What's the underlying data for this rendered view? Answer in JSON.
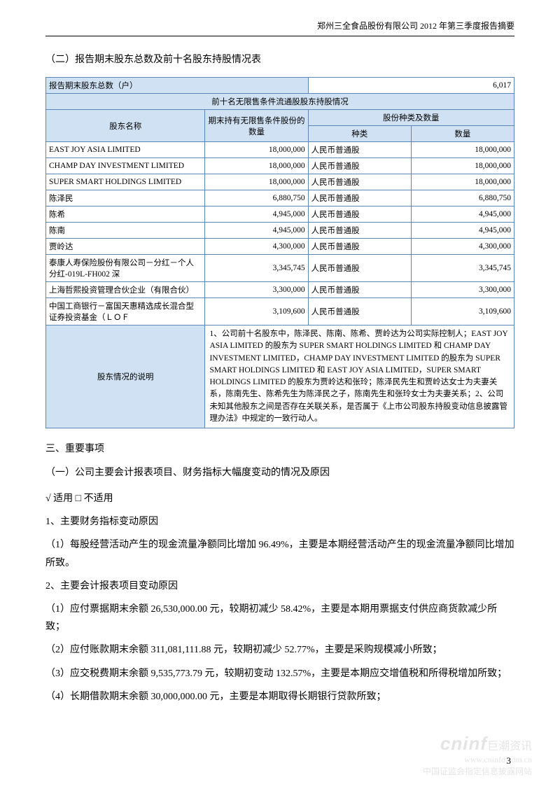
{
  "header": "郑州三全食品股份有限公司  2012 年第三季度报告摘要",
  "section2_title": "（二）报告期末股东总数及前十名股东持股情况表",
  "total_holders_label": "报告期末股东总数（户）",
  "total_holders_value": "6,017",
  "top10_header": "前十名无限售条件流通股股东持股情况",
  "col_name": "股东名称",
  "col_unlimited": "期末持有无限售条件股份的数量",
  "col_type_qty": "股份种类及数量",
  "col_type": "种类",
  "col_qty": "数量",
  "rows": [
    {
      "name": "EAST JOY ASIA LIMITED",
      "unl": "18,000,000",
      "type": "人民币普通股",
      "qty": "18,000,000"
    },
    {
      "name": "CHAMP DAY INVESTMENT LIMITED",
      "unl": "18,000,000",
      "type": "人民币普通股",
      "qty": "18,000,000"
    },
    {
      "name": "SUPER SMART HOLDINGS LIMITED",
      "unl": "18,000,000",
      "type": "人民币普通股",
      "qty": "18,000,000"
    },
    {
      "name": "陈泽民",
      "unl": "6,880,750",
      "type": "人民币普通股",
      "qty": "6,880,750"
    },
    {
      "name": "陈希",
      "unl": "4,945,000",
      "type": "人民币普通股",
      "qty": "4,945,000"
    },
    {
      "name": "陈南",
      "unl": "4,945,000",
      "type": "人民币普通股",
      "qty": "4,945,000"
    },
    {
      "name": "贾岭达",
      "unl": "4,300,000",
      "type": "人民币普通股",
      "qty": "4,300,000"
    },
    {
      "name": "泰康人寿保险股份有限公司－分红－个人分红-019L-FH002 深",
      "unl": "3,345,745",
      "type": "人民币普通股",
      "qty": "3,345,745"
    },
    {
      "name": "上海哲熙投资管理合伙企业（有限合伙）",
      "unl": "3,300,000",
      "type": "人民币普通股",
      "qty": "3,300,000"
    },
    {
      "name": "中国工商银行－富国天惠精选成长混合型证券投资基金（ＬＯＦ",
      "unl": "3,109,600",
      "type": "人民币普通股",
      "qty": "3,109,600"
    }
  ],
  "desc_label": "股东情况的说明",
  "desc_text": "1、公司前十名股东中，陈泽民、陈南、陈希、贾岭达为公司实际控制人；EAST JOY ASIA LIMITED 的股东为 SUPER SMART HOLDINGS LIMITED 和 CHAMP DAY INVESTMENT LIMITED，CHAMP DAY INVESTMENT LIMITED 的股东为 SUPER SMART HOLDINGS LIMITED 和 EAST JOY ASIA LIMITED，SUPER SMART HOLDINGS LIMITED 的股东为贾岭达和张玲；陈泽民先生和贾岭达女士为夫妻关系，陈南先生、陈希先生为陈泽民之子，陈南先生和张玲女士为夫妻关系；2、公司未知其他股东之间是否存在关联关系，是否属于《上市公司股东持股变动信息披露管理办法》中规定的一致行动人。",
  "section3": "三、重要事项",
  "section3_1": "（一）公司主要会计报表项目、财务指标大幅度变动的情况及原因",
  "applies": "√ 适用 □  不适用",
  "p1_title": "1、主要财务指标变动原因",
  "p1_1": "（1）每股经营活动产生的现金流量净额同比增加 96.49%，主要是本期经营活动产生的现金流量净额同比增加所致。",
  "p2_title": "2、主要会计报表项目变动原因",
  "p2_1": "（1）应付票据期末余额 26,530,000.00  元，较期初减少 58.42%，主要是本期用票据支付供应商货款减少所致；",
  "p2_2": "（2）应付账款期末余额 311,081,111.88  元，较期初减少 52.77%，主要是采购规模减小所致；",
  "p2_3": "（3）应交税费期末余额 9,535,773.79  元，较期初变动 132.57%，主要是本期应交增值税和所得税增加所致；",
  "p2_4": "（4）长期借款期末余额 30,000,000.00  元，主要是本期取得长期银行贷款所致；",
  "page_number": "3",
  "watermark": {
    "logo": "cninf",
    "cn": "巨潮资讯",
    "url": "www.cninfo.com.cn",
    "line2": "中国证监会指定信息披露网站"
  },
  "colors": {
    "border": "#5b86b6",
    "header_bg": "#cfe1f2",
    "text": "#000000",
    "bg": "#ffffff"
  }
}
